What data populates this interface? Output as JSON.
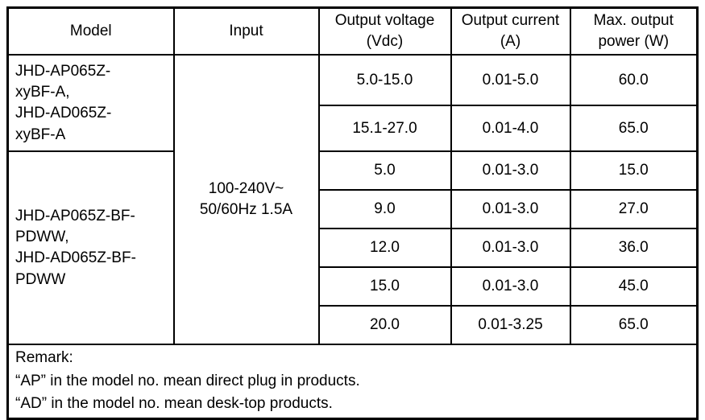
{
  "table": {
    "headers": {
      "model": "Model",
      "input": "Input",
      "output_voltage": "Output voltage (Vdc)",
      "output_current": "Output current (A)",
      "max_output_power": "Max. output power (W)"
    },
    "model_groups": [
      {
        "name": "JHD-AP065Z-\nxyBF-A,\nJHD-AD065Z-\nxyBF-A"
      },
      {
        "name": "JHD-AP065Z-BF-\nPDWW,\nJHD-AD065Z-BF-\nPDWW"
      }
    ],
    "input_value": "100-240V~\n50/60Hz 1.5A",
    "rows": [
      {
        "voltage": "5.0-15.0",
        "current": "0.01-5.0",
        "power": "60.0"
      },
      {
        "voltage": "15.1-27.0",
        "current": "0.01-4.0",
        "power": "65.0"
      },
      {
        "voltage": "5.0",
        "current": "0.01-3.0",
        "power": "15.0"
      },
      {
        "voltage": "9.0",
        "current": "0.01-3.0",
        "power": "27.0"
      },
      {
        "voltage": "12.0",
        "current": "0.01-3.0",
        "power": "36.0"
      },
      {
        "voltage": "15.0",
        "current": "0.01-3.0",
        "power": "45.0"
      },
      {
        "voltage": "20.0",
        "current": "0.01-3.25",
        "power": "65.0"
      }
    ],
    "remark": "Remark:\n“AP” in the model no. mean direct plug in products.\n“AD” in the model no. mean desk-top products."
  }
}
